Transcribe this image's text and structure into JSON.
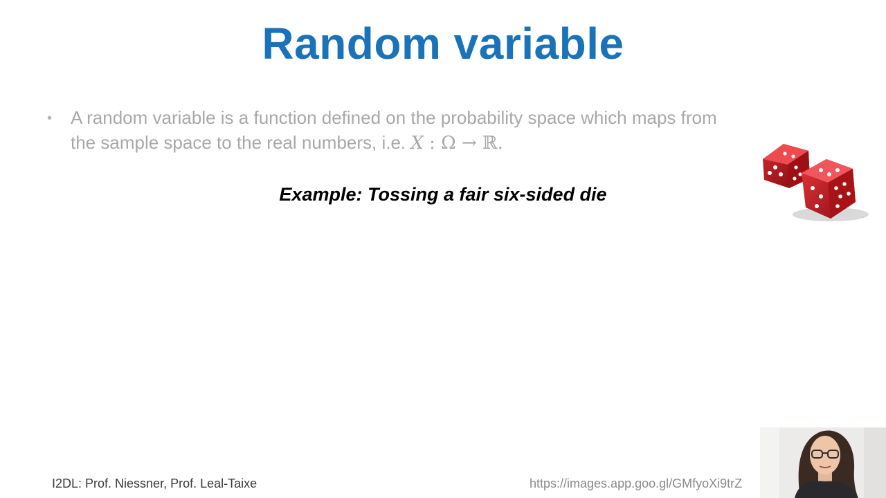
{
  "slide": {
    "title": "Random variable",
    "bullet": {
      "text_line1": "A random variable is a function defined on the probability space which maps from",
      "text_line2": "the sample space to the real numbers, i.e. ",
      "math_var": "X",
      "math_rest": " : Ω → ℝ."
    },
    "example": "Example: Tossing a fair six-sided die",
    "footer_left": "I2DL: Prof. Niessner, Prof. Leal-Taixe",
    "footer_right": "https://images.app.goo.gl/GMfyoXi9trZ"
  },
  "colors": {
    "title": "#1a73b8",
    "bullet_text": "#a8a8a8",
    "dice_red": "#c4161c"
  },
  "images": {
    "dice": "dice-illustration",
    "webcam": "presenter-webcam"
  }
}
